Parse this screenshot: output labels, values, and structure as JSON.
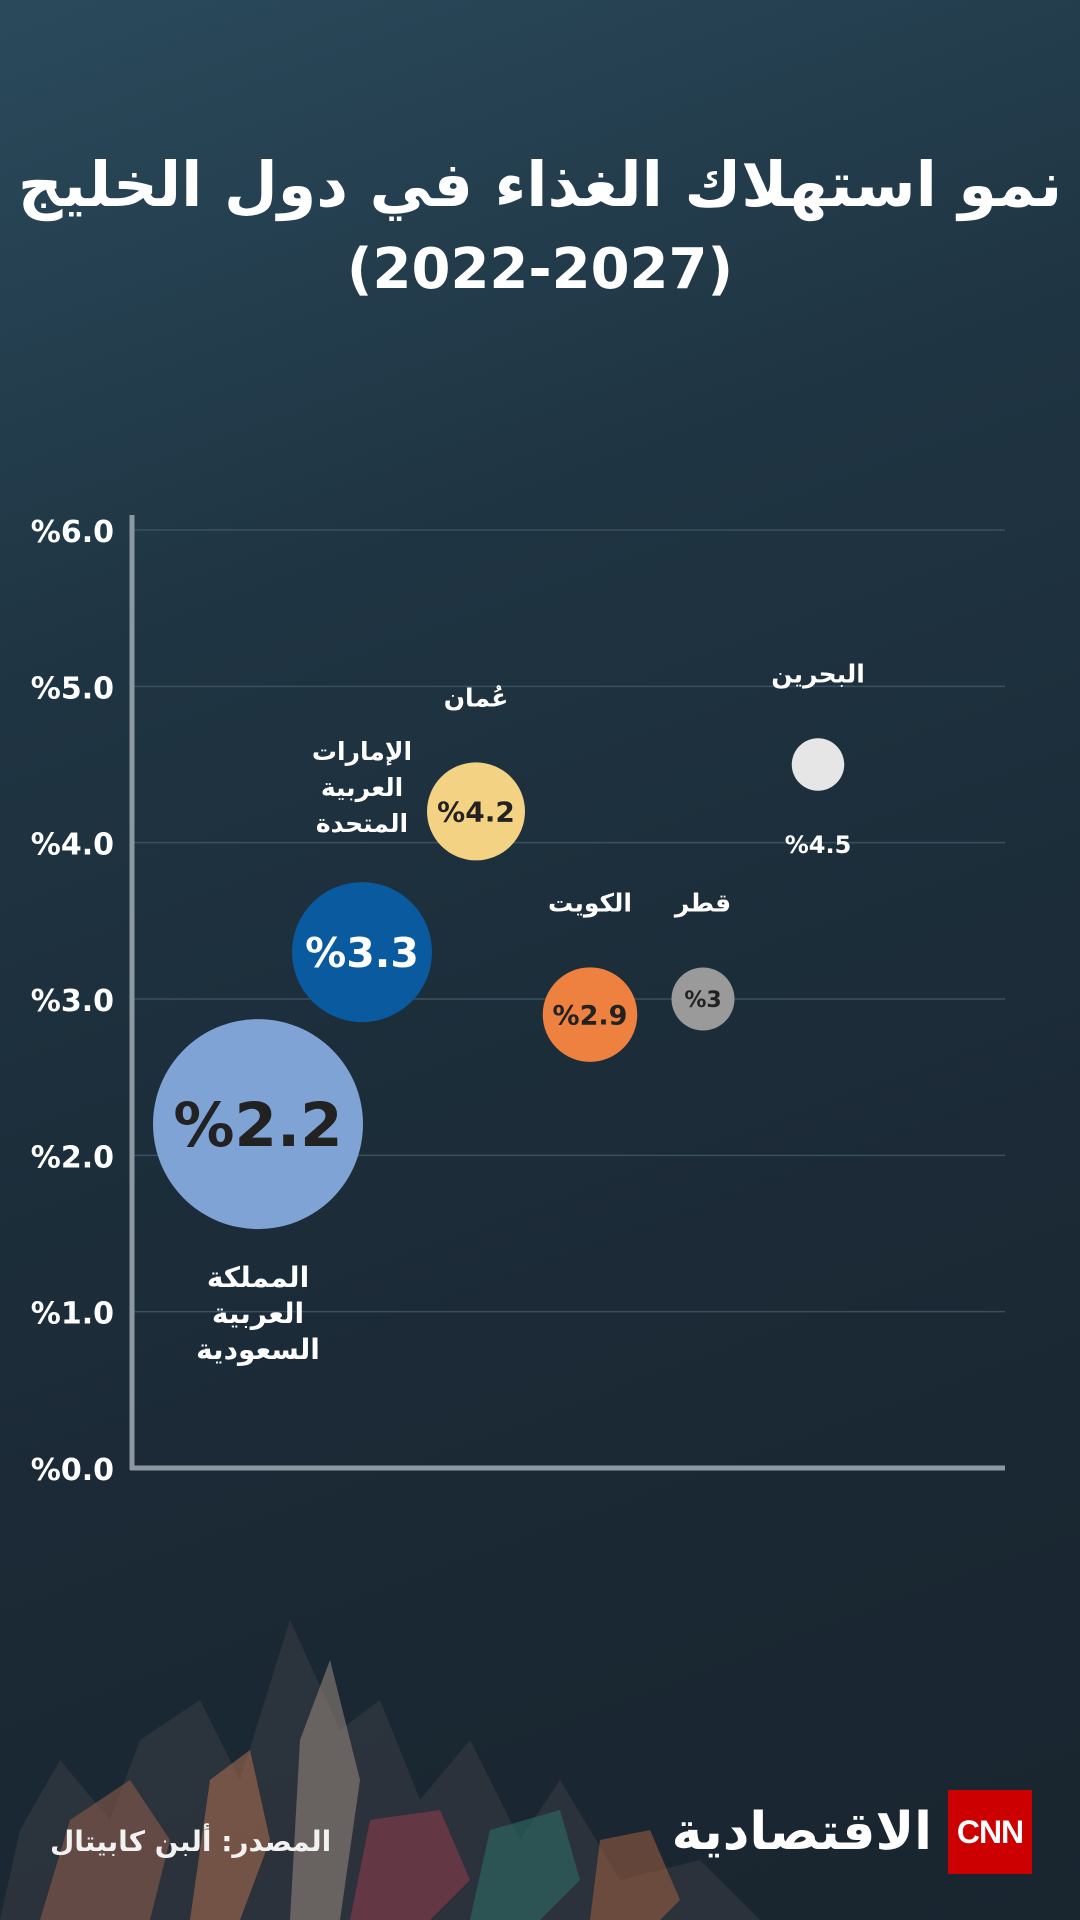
{
  "title": {
    "line1": "نمو استهلاك الغذاء في دول الخليج",
    "line2": "(2022-2027)"
  },
  "source": "المصدر: ألبن كابيتال",
  "logo": {
    "text": "الاقتصادية",
    "brand": "CNN"
  },
  "colors": {
    "axis": "#8c98a2",
    "grid": "#3a5060",
    "label": "#ffffff",
    "bubble_dark_text": "#222222"
  },
  "chart_data": {
    "type": "scatter",
    "title": "",
    "xlabel": "",
    "ylabel": "",
    "ylim": [
      0,
      6
    ],
    "yticks": [
      "%0.0",
      "%1.0",
      "%2.0",
      "%3.0",
      "%4.0",
      "%5.0",
      "%6.0"
    ],
    "grid": true,
    "bubble_size_encoding": "larger bubble = lower growth",
    "points": [
      {
        "name": "المملكة العربية السعودية",
        "label_lines": [
          "المملكة",
          "العربية",
          "السعودية"
        ],
        "value_label": "%2.2",
        "y": 2.2,
        "color": "#7fa3d4",
        "value_color": "#222222",
        "order": 1,
        "size": 3
      },
      {
        "name": "الإمارات العربية المتحدة",
        "label_lines": [
          "الإمارات",
          "العربية",
          "المتحدة"
        ],
        "value_label": "%3.3",
        "y": 3.3,
        "color": "#0a5aa0",
        "value_color": "#ffffff",
        "order": 2,
        "size": 2
      },
      {
        "name": "عُمان",
        "label_lines": [
          "عُمان"
        ],
        "value_label": "%4.2",
        "y": 4.2,
        "color": "#f4d283",
        "value_color": "#222222",
        "order": 3,
        "size": 1.4
      },
      {
        "name": "الكويت",
        "label_lines": [
          "الكويت"
        ],
        "value_label": "%2.9",
        "y": 2.9,
        "color": "#ee8040",
        "value_color": "#222222",
        "order": 4,
        "size": 1.35
      },
      {
        "name": "قطر",
        "label_lines": [
          "قطر"
        ],
        "value_label": "%3",
        "y": 3.0,
        "color": "#9a9a9a",
        "value_color": "#222222",
        "order": 5,
        "size": 0.9
      },
      {
        "name": "البحرين",
        "label_lines": [
          "البحرين"
        ],
        "value_label": "%4.5",
        "y": 4.5,
        "color": "#e6e6e6",
        "value_color": "#ffffff",
        "order": 6,
        "size": 0.75
      }
    ]
  }
}
